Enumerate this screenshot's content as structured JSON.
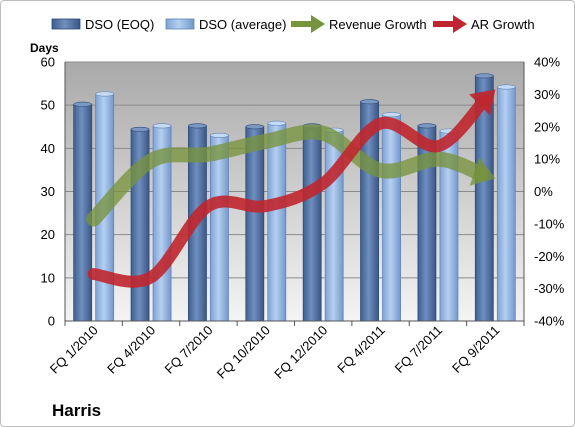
{
  "chart_data": {
    "type": "bar",
    "categories": [
      "FQ 1/2010",
      "FQ 4/2010",
      "FQ 7/2010",
      "FQ 10/2010",
      "FQ 12/2010",
      "FQ 4/2011",
      "FQ 7/2011",
      "FQ 9/2011"
    ],
    "bar_series": [
      {
        "name": "DSO (EOQ)",
        "values": [
          50.2,
          44.4,
          45.2,
          45.0,
          45.2,
          50.8,
          45.2,
          56.8
        ],
        "color": "#4f6fa0"
      },
      {
        "name": "DSO (average)",
        "values": [
          52.6,
          45.2,
          43.0,
          45.8,
          44.2,
          47.8,
          44.0,
          54.2
        ],
        "color": "#8db3e2"
      }
    ],
    "line_series": [
      {
        "name": "Revenue Growth",
        "axis": "right",
        "values": [
          -8.5,
          9.5,
          11.5,
          15.5,
          18.0,
          6.5,
          10.0,
          4.0
        ],
        "color": "#77933c"
      },
      {
        "name": "AR Growth",
        "axis": "right",
        "values": [
          -25.5,
          -26.5,
          -4.5,
          -4.5,
          2.5,
          21.0,
          14.0,
          31.5
        ],
        "color": "#c0262d"
      }
    ],
    "ylabel_left": "Days",
    "ylim_left": [
      0,
      60
    ],
    "yticks_left": [
      "0",
      "10",
      "20",
      "30",
      "40",
      "50",
      "60"
    ],
    "ylim_right": [
      -40,
      40
    ],
    "yticks_right": [
      "-40%",
      "-30%",
      "-20%",
      "-10%",
      "0%",
      "10%",
      "20%",
      "30%",
      "40%"
    ],
    "legend_position": "top",
    "grid": true,
    "annotation": "Harris"
  }
}
